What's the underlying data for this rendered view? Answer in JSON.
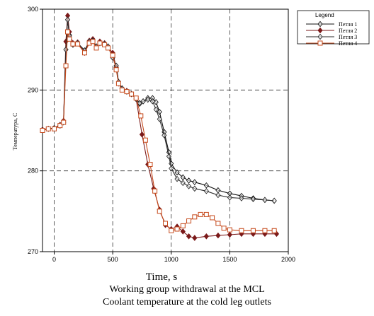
{
  "chart_data": {
    "type": "line",
    "xlabel": "Time, s",
    "ylabel": "Температура, С",
    "xlim": [
      -100,
      2000
    ],
    "ylim": [
      270,
      300
    ],
    "xticks": [
      0,
      500,
      1000,
      1500,
      2000
    ],
    "yticks": [
      270,
      280,
      290,
      300
    ],
    "grid": "dashed",
    "legend": {
      "title": "Legend",
      "position": "top-right"
    },
    "series": [
      {
        "name": "Петля 1",
        "color": "#111111",
        "marker": "diamond-hollow",
        "values": [
          [
            -100,
            285.1
          ],
          [
            -50,
            285.2
          ],
          [
            0,
            285.3
          ],
          [
            50,
            285.6
          ],
          [
            80,
            286
          ],
          [
            100,
            295
          ],
          [
            115,
            298.7
          ],
          [
            130,
            296.8
          ],
          [
            160,
            295.6
          ],
          [
            200,
            295.8
          ],
          [
            260,
            294.9
          ],
          [
            300,
            296
          ],
          [
            330,
            296.1
          ],
          [
            360,
            295.4
          ],
          [
            390,
            295.8
          ],
          [
            430,
            295.7
          ],
          [
            460,
            295.4
          ],
          [
            500,
            294
          ],
          [
            530,
            293
          ],
          [
            550,
            291
          ],
          [
            580,
            290.2
          ],
          [
            620,
            289.8
          ],
          [
            660,
            289.5
          ],
          [
            700,
            288.9
          ],
          [
            730,
            288.3
          ],
          [
            760,
            288.6
          ],
          [
            800,
            289
          ],
          [
            840,
            289
          ],
          [
            870,
            288.5
          ],
          [
            900,
            287.3
          ],
          [
            940,
            284.8
          ],
          [
            980,
            282.3
          ],
          [
            1000,
            280.9
          ],
          [
            1050,
            279.8
          ],
          [
            1100,
            279.2
          ],
          [
            1150,
            278.8
          ],
          [
            1200,
            278.6
          ],
          [
            1300,
            278.2
          ],
          [
            1400,
            277.6
          ],
          [
            1500,
            277.2
          ],
          [
            1600,
            276.9
          ],
          [
            1700,
            276.6
          ],
          [
            1800,
            276.4
          ],
          [
            1880,
            276.3
          ]
        ]
      },
      {
        "name": "Петля 2",
        "color": "#7b1a1a",
        "marker": "diamond-filled",
        "values": [
          [
            -100,
            285.1
          ],
          [
            -50,
            285.2
          ],
          [
            0,
            285.3
          ],
          [
            50,
            285.7
          ],
          [
            80,
            286.2
          ],
          [
            100,
            296
          ],
          [
            115,
            299.2
          ],
          [
            130,
            297.2
          ],
          [
            160,
            295.8
          ],
          [
            200,
            295.9
          ],
          [
            260,
            294.6
          ],
          [
            300,
            296.1
          ],
          [
            330,
            296.3
          ],
          [
            360,
            295.3
          ],
          [
            390,
            296
          ],
          [
            430,
            295.8
          ],
          [
            460,
            295.3
          ],
          [
            500,
            294.6
          ],
          [
            530,
            292.8
          ],
          [
            550,
            290.8
          ],
          [
            580,
            290.2
          ],
          [
            620,
            289.9
          ],
          [
            660,
            289.5
          ],
          [
            700,
            288.9
          ],
          [
            750,
            284.5
          ],
          [
            800,
            280.8
          ],
          [
            850,
            277.8
          ],
          [
            900,
            275.2
          ],
          [
            950,
            273.3
          ],
          [
            1000,
            272.8
          ],
          [
            1050,
            273.1
          ],
          [
            1100,
            272.5
          ],
          [
            1150,
            271.9
          ],
          [
            1200,
            271.7
          ],
          [
            1300,
            271.9
          ],
          [
            1400,
            272
          ],
          [
            1500,
            272.1
          ],
          [
            1600,
            272.2
          ],
          [
            1700,
            272.2
          ],
          [
            1800,
            272.2
          ],
          [
            1900,
            272.2
          ]
        ]
      },
      {
        "name": "Петля 3",
        "color": "#2a2a2a",
        "marker": "diamond-hollow",
        "values": [
          [
            -100,
            285
          ],
          [
            -50,
            285.2
          ],
          [
            0,
            285.3
          ],
          [
            50,
            285.6
          ],
          [
            80,
            286
          ],
          [
            100,
            295
          ],
          [
            115,
            298.7
          ],
          [
            130,
            296.7
          ],
          [
            160,
            295.6
          ],
          [
            200,
            295.8
          ],
          [
            260,
            294.9
          ],
          [
            300,
            296
          ],
          [
            330,
            296.1
          ],
          [
            360,
            295.4
          ],
          [
            390,
            295.8
          ],
          [
            430,
            295.7
          ],
          [
            460,
            295.4
          ],
          [
            500,
            294
          ],
          [
            530,
            293
          ],
          [
            550,
            291
          ],
          [
            580,
            290.2
          ],
          [
            620,
            289.8
          ],
          [
            660,
            289.5
          ],
          [
            700,
            288.9
          ],
          [
            730,
            288.4
          ],
          [
            760,
            288.6
          ],
          [
            800,
            288.8
          ],
          [
            840,
            288.6
          ],
          [
            870,
            287.6
          ],
          [
            900,
            286.4
          ],
          [
            940,
            284.4
          ],
          [
            980,
            281.8
          ],
          [
            1000,
            280.3
          ],
          [
            1050,
            279
          ],
          [
            1100,
            278.5
          ],
          [
            1150,
            278.1
          ],
          [
            1200,
            277.8
          ],
          [
            1300,
            277.5
          ],
          [
            1400,
            277
          ],
          [
            1500,
            276.7
          ],
          [
            1600,
            276.6
          ],
          [
            1700,
            276.5
          ],
          [
            1800,
            276.4
          ],
          [
            1880,
            276.3
          ]
        ]
      },
      {
        "name": "Петля 4",
        "color": "#c64a1c",
        "marker": "square-hollow",
        "values": [
          [
            -100,
            285
          ],
          [
            -50,
            285.2
          ],
          [
            0,
            285.2
          ],
          [
            50,
            285.6
          ],
          [
            80,
            286
          ],
          [
            100,
            293
          ],
          [
            115,
            297.2
          ],
          [
            130,
            296.3
          ],
          [
            160,
            295.7
          ],
          [
            200,
            295.7
          ],
          [
            260,
            294.6
          ],
          [
            300,
            295.8
          ],
          [
            330,
            296
          ],
          [
            360,
            295.2
          ],
          [
            390,
            295.8
          ],
          [
            430,
            295.6
          ],
          [
            460,
            295.2
          ],
          [
            500,
            294.3
          ],
          [
            530,
            292.5
          ],
          [
            550,
            290.8
          ],
          [
            580,
            290
          ],
          [
            620,
            289.8
          ],
          [
            660,
            289.5
          ],
          [
            700,
            289
          ],
          [
            740,
            286.8
          ],
          [
            780,
            283.8
          ],
          [
            820,
            280.8
          ],
          [
            860,
            277.5
          ],
          [
            900,
            275
          ],
          [
            950,
            273.5
          ],
          [
            1000,
            272.6
          ],
          [
            1050,
            272.8
          ],
          [
            1100,
            273.2
          ],
          [
            1150,
            273.8
          ],
          [
            1200,
            274.3
          ],
          [
            1250,
            274.6
          ],
          [
            1300,
            274.6
          ],
          [
            1350,
            274.2
          ],
          [
            1400,
            273.5
          ],
          [
            1450,
            272.9
          ],
          [
            1500,
            272.7
          ],
          [
            1600,
            272.6
          ],
          [
            1700,
            272.6
          ],
          [
            1800,
            272.6
          ],
          [
            1880,
            272.6
          ]
        ]
      }
    ]
  },
  "captions": {
    "line1": "Working group withdrawal at the MCL",
    "line2": "Coolant temperature at the cold leg outlets"
  }
}
